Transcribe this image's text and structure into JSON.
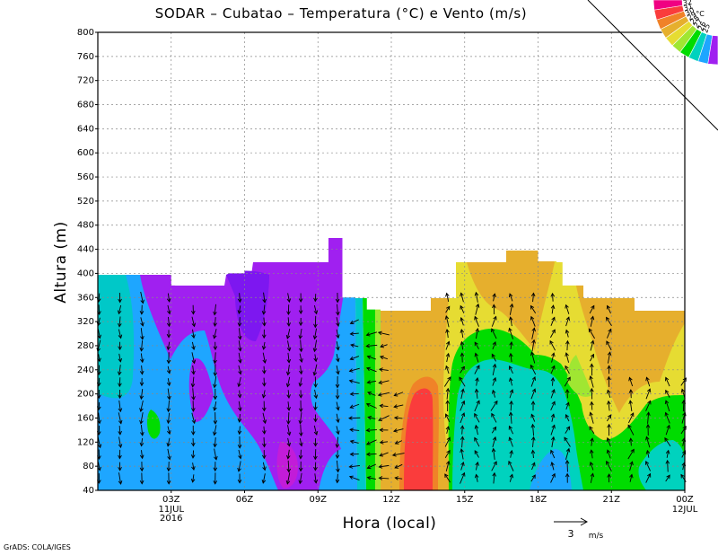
{
  "title": "SODAR – Cubatao – Temperatura (°C) e Vento (m/s)",
  "xlabel": "Hora (local)",
  "ylabel": "Altura (m)",
  "credit": "GrADS: COLA/IGES",
  "wind_reference": {
    "value": "3",
    "unit": "m/s"
  },
  "legend": {
    "unit": "°C",
    "levels": [
      "32",
      "31",
      "30",
      "29",
      "28",
      "27",
      "26",
      "25"
    ]
  },
  "colors": {
    "purple": "#a020f0",
    "violet": "#7d17f0",
    "skyblue": "#1ea6ff",
    "lightblue": "#00c8c8",
    "teal": "#00d2be",
    "green": "#00dc00",
    "lime": "#a0e632",
    "yellow": "#e6dc32",
    "orange": "#e6af2d",
    "salmon": "#f08228",
    "red": "#fa3c3c",
    "magenta": "#f00082"
  },
  "chart_data": {
    "type": "contour",
    "title": "SODAR – Cubatao – Temperatura (°C) e Vento (m/s)",
    "xlabel": "Hora (local)",
    "ylabel": "Altura (m)",
    "ylim": [
      40,
      800
    ],
    "yticks": [
      40,
      80,
      120,
      160,
      200,
      240,
      280,
      320,
      360,
      400,
      440,
      480,
      520,
      560,
      600,
      640,
      680,
      720,
      760,
      800
    ],
    "xticks": [
      {
        "hour": 3,
        "label": "03Z",
        "sub": [
          "11JUL",
          "2016"
        ]
      },
      {
        "hour": 6,
        "label": "06Z",
        "sub": []
      },
      {
        "hour": 9,
        "label": "09Z",
        "sub": []
      },
      {
        "hour": 12,
        "label": "12Z",
        "sub": []
      },
      {
        "hour": 15,
        "label": "15Z",
        "sub": []
      },
      {
        "hour": 18,
        "label": "18Z",
        "sub": []
      },
      {
        "hour": 21,
        "label": "21Z",
        "sub": []
      },
      {
        "hour": 24,
        "label": "00Z",
        "sub": [
          "12JUL"
        ]
      }
    ],
    "xlim": [
      0,
      24
    ],
    "data_top_height": [
      {
        "from": 0,
        "to": 3,
        "height": 400
      },
      {
        "from": 3,
        "to": 5,
        "height": 380
      },
      {
        "from": 5,
        "to": 6,
        "height": 400
      },
      {
        "from": 6,
        "to": 9,
        "height": 420
      },
      {
        "from": 9,
        "to": 10,
        "height": 460
      },
      {
        "from": 10,
        "to": 11,
        "height": 360
      },
      {
        "from": 11,
        "to": 13,
        "height": 340
      },
      {
        "from": 13,
        "to": 14,
        "height": 360
      },
      {
        "from": 14,
        "to": 16,
        "height": 420
      },
      {
        "from": 16,
        "to": 18,
        "height": 440
      },
      {
        "from": 18,
        "to": 19,
        "height": 420
      },
      {
        "from": 19,
        "to": 22,
        "height": 380
      },
      {
        "from": 22,
        "to": 24,
        "height": 340
      }
    ]
  }
}
